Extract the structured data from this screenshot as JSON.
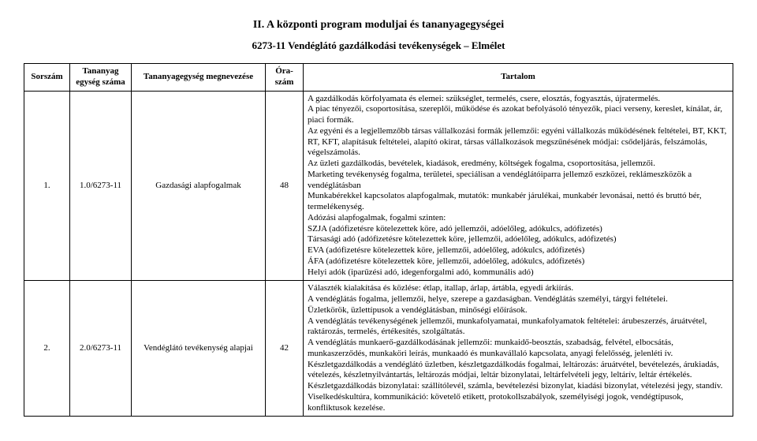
{
  "section_title": "II. A központi program moduljai és tananyagegységei",
  "subtitle": "6273-11 Vendéglátó gazdálkodási tevékenységek – Elmélet",
  "table": {
    "headers": {
      "sorszam": "Sorszám",
      "egyseg": "Tananyag egység száma",
      "megnevezes": "Tananyagegység megnevezése",
      "oraszam": "Óra-szám",
      "tartalom": "Tartalom"
    },
    "rows": [
      {
        "sorszam": "1.",
        "egyseg": "1.0/6273-11",
        "megnevezes": "Gazdasági alapfogalmak",
        "oraszam": "48",
        "tartalom": [
          "A gazdálkodás körfolyamata és elemei: szükséglet, termelés, csere, elosztás, fogyasztás, újratermelés.",
          "A piac tényezői, csoportosítása, szereplői, működése és azokat befolyásoló tényezők, piaci verseny, kereslet, kínálat, ár, piaci formák.",
          "Az egyéni és a legjellemzőbb társas vállalkozási formák jellemzői: egyéni vállalkozás működésének feltételei, BT, KKT, RT, KFT, alapításuk feltételei, alapító okirat, társas vállalkozások megszűnésének módjai: csődeljárás, felszámolás, végelszámolás.",
          "Az üzleti gazdálkodás, bevételek, kiadások, eredmény, költségek fogalma, csoportosítása, jellemzői.",
          "Marketing tevékenység fogalma, területei, speciálisan a vendéglátóiparra jellemző eszközei, reklámeszközök a vendéglátásban",
          "Munkabérekkel kapcsolatos alapfogalmak, mutatók: munkabér járulékai, munkabér levonásai, nettó és bruttó bér, termelékenység.",
          "Adózási alapfogalmak, fogalmi szinten:",
          "SZJA (adófizetésre kötelezettek köre, adó jellemzői, adóelőleg, adókulcs, adófizetés)",
          "Társasági adó (adófizetésre kötelezettek köre, jellemzői, adóelőleg, adókulcs, adófizetés)",
          "EVA (adófizetésre kötelezettek köre, jellemzői, adóelőleg, adókulcs, adófizetés)",
          "ÁFA (adófizetésre kötelezettek köre, jellemzői, adóelőleg, adókulcs, adófizetés)",
          "Helyi adók (iparűzési adó, idegenforgalmi adó, kommunális adó)"
        ]
      },
      {
        "sorszam": "2.",
        "egyseg": "2.0/6273-11",
        "megnevezes": "Vendéglátó tevékenység alapjai",
        "oraszam": "42",
        "tartalom": [
          "Választék kialakítása és közlése: étlap, itallap, árlap, ártábla, egyedi árkiírás.",
          "A vendéglátás fogalma, jellemzői, helye, szerepe a gazdaságban. Vendéglátás személyi, tárgyi feltételei.",
          "Üzletkörök, üzlettípusok a vendéglátásban, minőségi előírások.",
          "A vendéglátás tevékenységének jellemzői, munkafolyamatai, munkafolyamatok feltételei: árubeszerzés, áruátvétel, raktározás, termelés, értékesítés, szolgáltatás.",
          "A vendéglátás munkaerő-gazdálkodásának jellemzői: munkaidő-beosztás, szabadság, felvétel, elbocsátás, munkaszerződés, munkaköri leírás, munkaadó és munkavállaló kapcsolata, anyagi felelősség, jelenléti ív.",
          "Készletgazdálkodás a vendéglátó üzletben, készletgazdálkodás fogalmai, leltározás: áruátvétel, bevételezés, árukiadás, vételezés, készletnyilvántartás, leltározás módjai, leltár bizonylatai, leltárfelvételi jegy, leltárív, leltár értékelés.",
          "Készletgazdálkodás bizonylatai: szállítólevél, számla, bevételezési bizonylat, kiadási bizonylat, vételezési jegy, standív.",
          "Viselkedéskultúra, kommunikáció: követelő etikett, protokollszabályok, személyiségi jogok, vendégtípusok, konfliktusok kezelése."
        ]
      }
    ]
  }
}
